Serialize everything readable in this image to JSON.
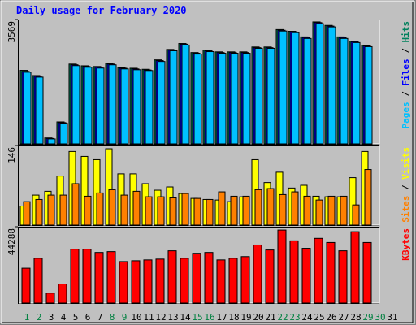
{
  "chart_data": {
    "type": "bar",
    "title": "Daily usage for February 2020",
    "categories": [
      "1",
      "2",
      "3",
      "4",
      "5",
      "6",
      "7",
      "8",
      "9",
      "10",
      "11",
      "12",
      "13",
      "14",
      "15",
      "16",
      "17",
      "18",
      "19",
      "20",
      "21",
      "22",
      "23",
      "24",
      "25",
      "26",
      "27",
      "28",
      "29",
      "30",
      "31"
    ],
    "category_colors": [
      "#008040",
      "#008040",
      "#000000",
      "#000000",
      "#000000",
      "#000000",
      "#000000",
      "#008040",
      "#008040",
      "#000000",
      "#000000",
      "#000000",
      "#000000",
      "#000000",
      "#008040",
      "#008040",
      "#000000",
      "#000000",
      "#000000",
      "#000000",
      "#000000",
      "#008040",
      "#008040",
      "#000000",
      "#000000",
      "#000000",
      "#000000",
      "#000000",
      "#008040",
      "#008040",
      "#000000"
    ],
    "legend_separator": " / ",
    "panels": [
      {
        "ylim": [
          0,
          3569
        ],
        "yticks": [
          3569
        ],
        "series": [
          {
            "name": "Hits",
            "color": "#00805c",
            "values": [
              2110,
              1960,
              170,
              630,
              2290,
              2240,
              2220,
              2310,
              2190,
              2170,
              2140,
              2410,
              2710,
              2880,
              2620,
              2690,
              2640,
              2640,
              2640,
              2780,
              2780,
              3280,
              3230,
              3070,
              3500,
              3400,
              3070,
              2950,
              2830,
              null,
              null
            ]
          },
          {
            "name": "Files",
            "color": "#0000ff",
            "values": [
              2080,
              1940,
              155,
              610,
              2270,
              2220,
              2200,
              2290,
              2170,
              2150,
              2120,
              2390,
              2690,
              2860,
              2600,
              2670,
              2620,
              2620,
              2620,
              2760,
              2760,
              3260,
              3210,
              3050,
              3480,
              3380,
              3050,
              2930,
              2810,
              null,
              null
            ]
          },
          {
            "name": "Pages",
            "color": "#00c0ff",
            "values": [
              2056,
              1915,
              142,
              591,
              2245,
              2198,
              2175,
              2269,
              2151,
              2127,
              2104,
              2364,
              2671,
              2836,
              2576,
              2647,
              2600,
              2600,
              2600,
              2742,
              2742,
              3238,
              3191,
              3025,
              3451,
              3356,
              3025,
              2907,
              2789,
              null,
              null
            ]
          }
        ]
      },
      {
        "ylim": [
          0,
          146
        ],
        "yticks": [
          146
        ],
        "series": [
          {
            "name": "Visits",
            "color": "#ffff00",
            "values": [
              35,
              55,
              62,
              90,
              135,
              126,
              120,
              140,
              94,
              94,
              76,
              64,
              70,
              58,
              49,
              47,
              46,
              43,
              52,
              120,
              78,
              97,
              68,
              73,
              53,
              52,
              52,
              87,
              135,
              null,
              null
            ]
          },
          {
            "name": "Sites",
            "color": "#ff8000",
            "values": [
              43,
              47,
              55,
              55,
              76,
              53,
              59,
              65,
              55,
              62,
              52,
              52,
              50,
              58,
              49,
              47,
              61,
              53,
              53,
              65,
              67,
              56,
              61,
              53,
              46,
              53,
              53,
              37,
              102,
              null,
              null
            ]
          }
        ]
      },
      {
        "ylim": [
          0,
          44288
        ],
        "yticks": [
          44288
        ],
        "series": [
          {
            "name": "KBytes",
            "color": "#ff0000",
            "values": [
              20219,
              25995,
              5777,
              11072,
              31290,
              31290,
              29365,
              29846,
              24069,
              24550,
              25032,
              25513,
              30327,
              25995,
              28883,
              29365,
              25032,
              25995,
              26958,
              33697,
              30808,
              42362,
              36103,
              31771,
              37548,
              35141,
              30327,
              41400,
              35141,
              null,
              null
            ]
          }
        ]
      }
    ]
  }
}
